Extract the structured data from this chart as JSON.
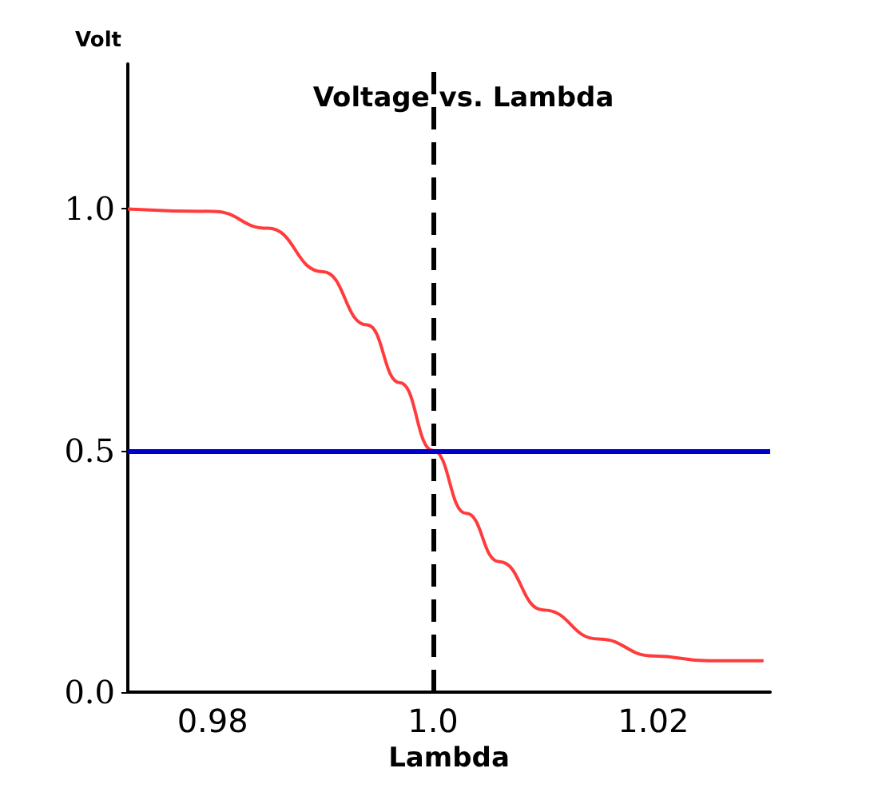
{
  "chart_data": {
    "type": "line",
    "title": "Voltage vs. Lambda",
    "xlabel": "Lambda",
    "ylabel": "Volt",
    "x": [
      0.9723,
      0.98,
      0.985,
      0.99,
      0.994,
      0.997,
      1.0,
      1.003,
      1.006,
      1.01,
      1.015,
      1.02,
      1.025,
      1.03
    ],
    "series": [
      {
        "color": "#ff3b3b",
        "values": [
          1.0,
          0.995,
          0.96,
          0.87,
          0.76,
          0.64,
          0.5,
          0.37,
          0.27,
          0.17,
          0.11,
          0.075,
          0.065,
          0.065
        ]
      }
    ],
    "xlim": [
      0.9723,
      1.0306
    ],
    "xticks": [
      0.98,
      {
        "value": 1.0,
        "label": "1.0"
      },
      1.02
    ],
    "ylim": [
      0,
      1.3
    ],
    "yticks": [
      {
        "value": 0,
        "label": "0.0"
      },
      {
        "value": 0.5,
        "label": "0.5"
      },
      {
        "value": 1.0,
        "label": "1.0"
      }
    ],
    "ref_lines": [
      {
        "axis": "y",
        "value": 0.5,
        "color": "#0000cc",
        "line_style": "solid"
      },
      {
        "axis": "x",
        "value": 1.0,
        "color": "#000000",
        "line_style": "dashed"
      }
    ],
    "grid": false,
    "marker": "none",
    "line_style": "solid"
  }
}
